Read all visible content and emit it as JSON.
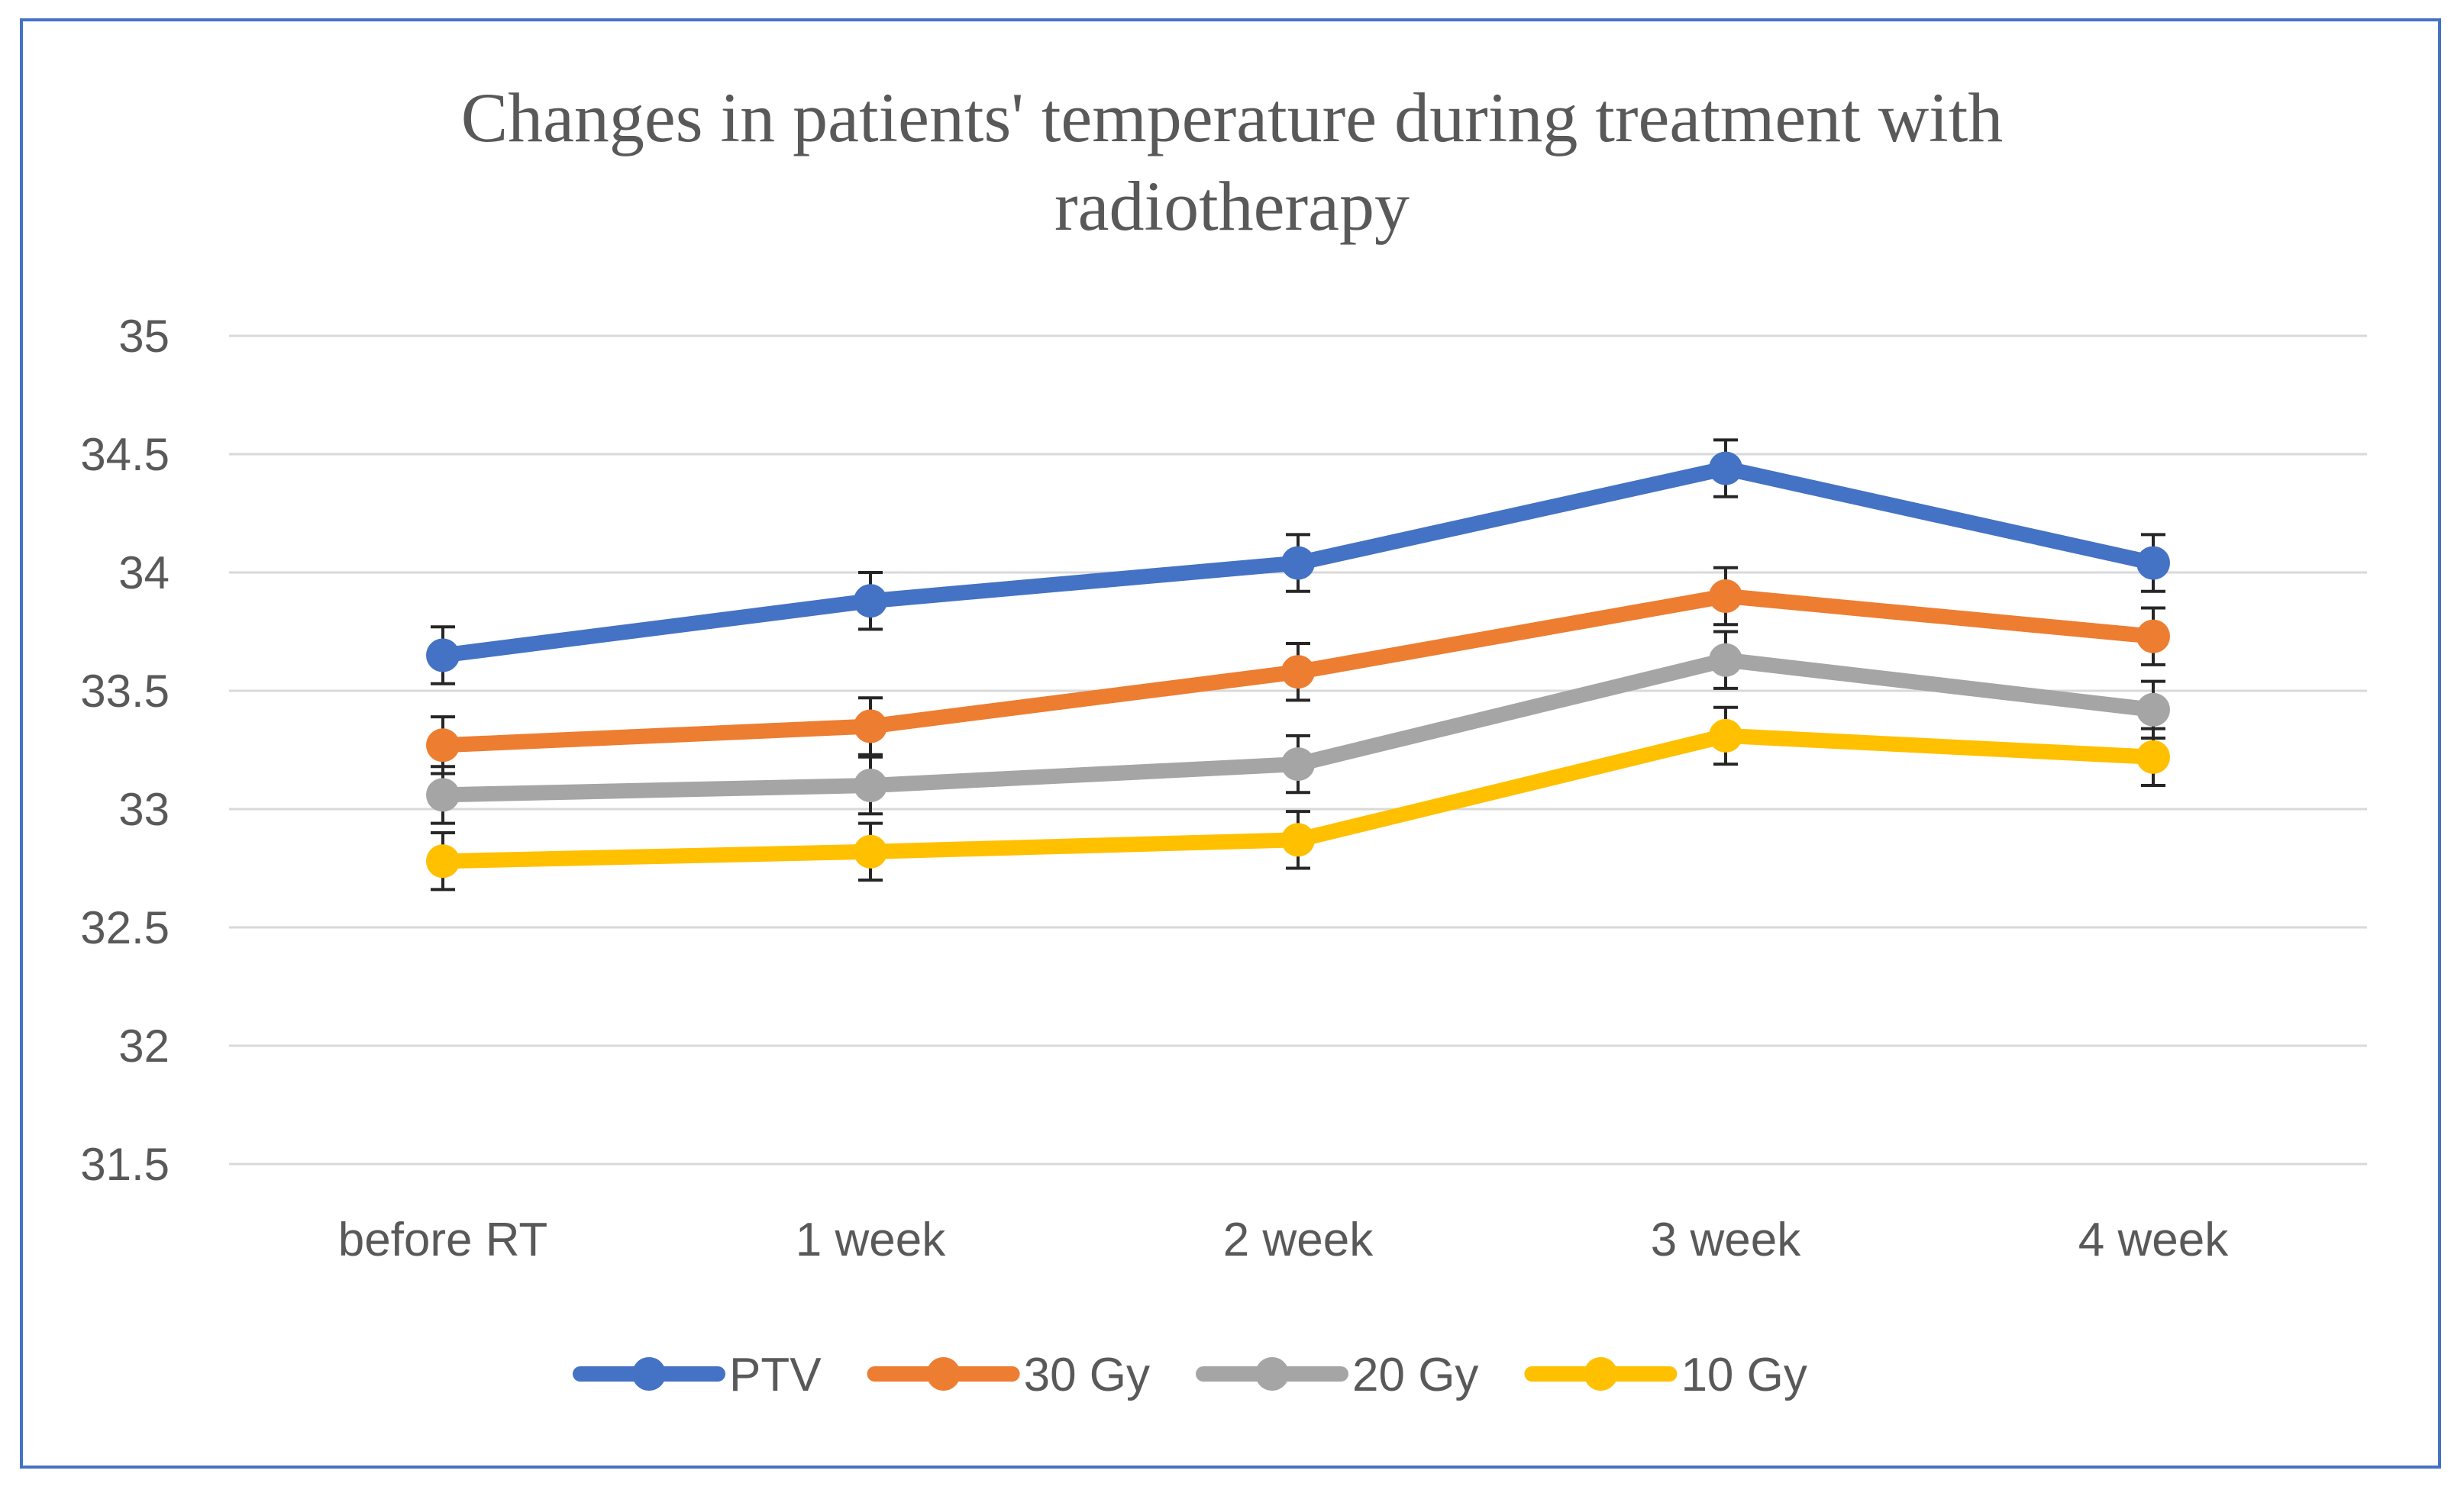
{
  "chart_data": {
    "type": "line",
    "title": "Changes in patients' temperature during treatment with radiotherapy",
    "title_lines": [
      "Changes in patients' temperature during treatment with",
      "radiotherapy"
    ],
    "xlabel": "",
    "ylabel": "",
    "categories": [
      "before RT",
      "1 week",
      "2 week",
      "3 week",
      "4 week"
    ],
    "ylim": [
      31.5,
      35
    ],
    "yticks": [
      31.5,
      32,
      32.5,
      33,
      33.5,
      34,
      34.5,
      35
    ],
    "ytick_labels": [
      "31.5",
      "32",
      "32.5",
      "33",
      "33.5",
      "34",
      "34.5",
      "35"
    ],
    "grid": true,
    "legend_position": "bottom",
    "error_bar": 0.12,
    "series": [
      {
        "name": "PTV",
        "color": "#4472C4",
        "values": [
          33.65,
          33.88,
          34.04,
          34.44,
          34.04
        ]
      },
      {
        "name": "30 Gy",
        "color": "#ED7D31",
        "values": [
          33.27,
          33.35,
          33.58,
          33.9,
          33.73
        ]
      },
      {
        "name": "20 Gy",
        "color": "#A5A5A5",
        "values": [
          33.06,
          33.1,
          33.19,
          33.63,
          33.42
        ]
      },
      {
        "name": "10 Gy",
        "color": "#FFC000",
        "values": [
          32.78,
          32.82,
          32.87,
          33.31,
          33.22
        ]
      }
    ]
  }
}
